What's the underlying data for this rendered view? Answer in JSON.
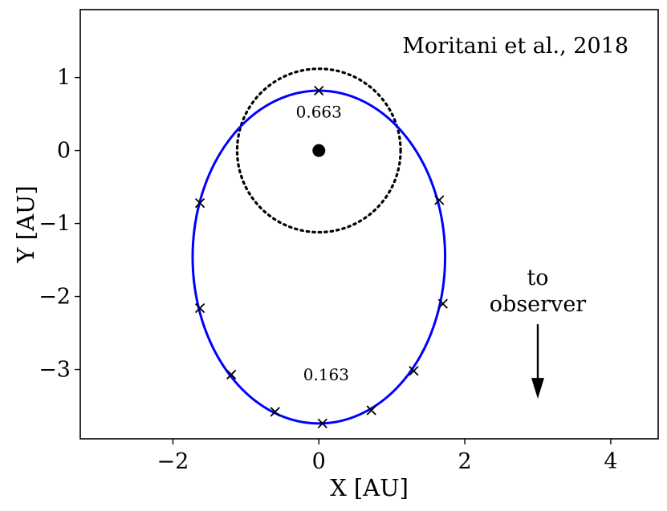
{
  "chart_data": {
    "type": "scatter",
    "title": "",
    "xlabel": "X [AU]",
    "ylabel": "Y [AU]",
    "xlim": [
      -3.27,
      4.65
    ],
    "ylim": [
      -3.95,
      1.93
    ],
    "xticks": [
      -2,
      0,
      2,
      4
    ],
    "xtick_labels": [
      "−2",
      "0",
      "2",
      "4"
    ],
    "yticks": [
      1,
      0,
      -1,
      -2,
      -3
    ],
    "ytick_labels": [
      "1",
      "0",
      "−1",
      "−2",
      "−3"
    ],
    "grid": false,
    "orbit": {
      "center": [
        0.0,
        -1.46
      ],
      "semi_axis_x": 1.73,
      "semi_axis_y": 2.28,
      "color": "#0000ff"
    },
    "star": {
      "x": 0.0,
      "y": 0.0,
      "color": "#000000"
    },
    "dotted_circle": {
      "center": [
        0.0,
        0.0
      ],
      "radius": 1.12,
      "color": "#000000"
    },
    "markers": {
      "marker": "x",
      "points": [
        {
          "x": 0.0,
          "y": 0.82
        },
        {
          "x": 1.65,
          "y": -0.68
        },
        {
          "x": 1.7,
          "y": -2.1
        },
        {
          "x": 1.3,
          "y": -3.02
        },
        {
          "x": 0.72,
          "y": -3.56
        },
        {
          "x": 0.05,
          "y": -3.74
        },
        {
          "x": -0.6,
          "y": -3.58
        },
        {
          "x": -1.2,
          "y": -3.07
        },
        {
          "x": -1.63,
          "y": -2.16
        },
        {
          "x": -1.63,
          "y": -0.72
        }
      ]
    },
    "annotations": {
      "citation": "Moritani et al., 2018",
      "phase_top": "0.663",
      "phase_bottom": "0.163",
      "observer_line1": "to",
      "observer_line2": "observer"
    },
    "observer_arrow": {
      "x": 3.0,
      "y_start": -2.38,
      "y_end": -3.38
    }
  }
}
